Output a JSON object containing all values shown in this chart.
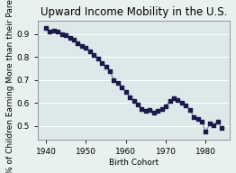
{
  "title": "Upward Income Mobility in the U.S.",
  "xlabel": "Birth Cohort",
  "ylabel": "% of Children Earning More than their Parents",
  "xlim": [
    1938,
    1986
  ],
  "ylim": [
    0.44,
    0.96
  ],
  "xticks": [
    1940,
    1950,
    1960,
    1970,
    1980
  ],
  "yticks": [
    0.5,
    0.6,
    0.7,
    0.8,
    0.9
  ],
  "x": [
    1940,
    1941,
    1942,
    1943,
    1944,
    1945,
    1946,
    1947,
    1948,
    1949,
    1950,
    1951,
    1952,
    1953,
    1954,
    1955,
    1956,
    1957,
    1958,
    1959,
    1960,
    1961,
    1962,
    1963,
    1964,
    1965,
    1966,
    1967,
    1968,
    1969,
    1970,
    1971,
    1972,
    1973,
    1974,
    1975,
    1976,
    1977,
    1978,
    1979,
    1980,
    1981,
    1982,
    1983,
    1984
  ],
  "y": [
    0.928,
    0.91,
    0.915,
    0.912,
    0.9,
    0.895,
    0.885,
    0.875,
    0.862,
    0.85,
    0.84,
    0.825,
    0.81,
    0.795,
    0.775,
    0.76,
    0.74,
    0.7,
    0.688,
    0.67,
    0.65,
    0.625,
    0.61,
    0.595,
    0.575,
    0.565,
    0.57,
    0.56,
    0.565,
    0.575,
    0.585,
    0.61,
    0.62,
    0.615,
    0.6,
    0.59,
    0.57,
    0.54,
    0.53,
    0.52,
    0.475,
    0.51,
    0.505,
    0.52,
    0.49
  ],
  "line_color": "#708090",
  "marker_color": "#1a1a4a",
  "bg_color": "#e8f0f0",
  "plot_bg": "#dce8ea",
  "title_fontsize": 8.5,
  "tick_fontsize": 6.5,
  "label_fontsize": 6.5
}
